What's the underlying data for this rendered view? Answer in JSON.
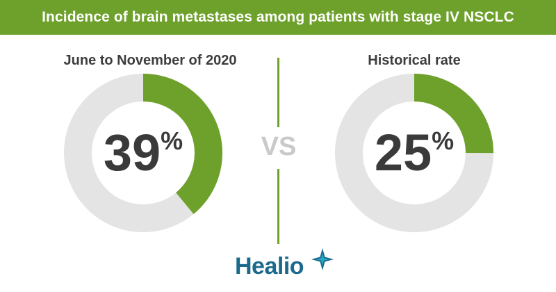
{
  "colors": {
    "accent": "#6ea12b",
    "track": "#e4e4e4",
    "value_text": "#3a3a3a",
    "logo_blue": "#1b6a8c",
    "logo_teal": "#27a9c9"
  },
  "header": {
    "title": "Incidence of brain metastases among patients with stage IV NSCLC"
  },
  "separator": {
    "label": "VS"
  },
  "brand": {
    "name": "Healio",
    "icon": "star-icon"
  },
  "chart_data": [
    {
      "type": "pie",
      "subtype": "donut",
      "title": "June to November of 2020",
      "value": 39,
      "label_number": "39",
      "label_unit": "%"
    },
    {
      "type": "pie",
      "subtype": "donut",
      "title": "Historical rate",
      "value": 25,
      "label_number": "25",
      "label_unit": "%"
    }
  ]
}
